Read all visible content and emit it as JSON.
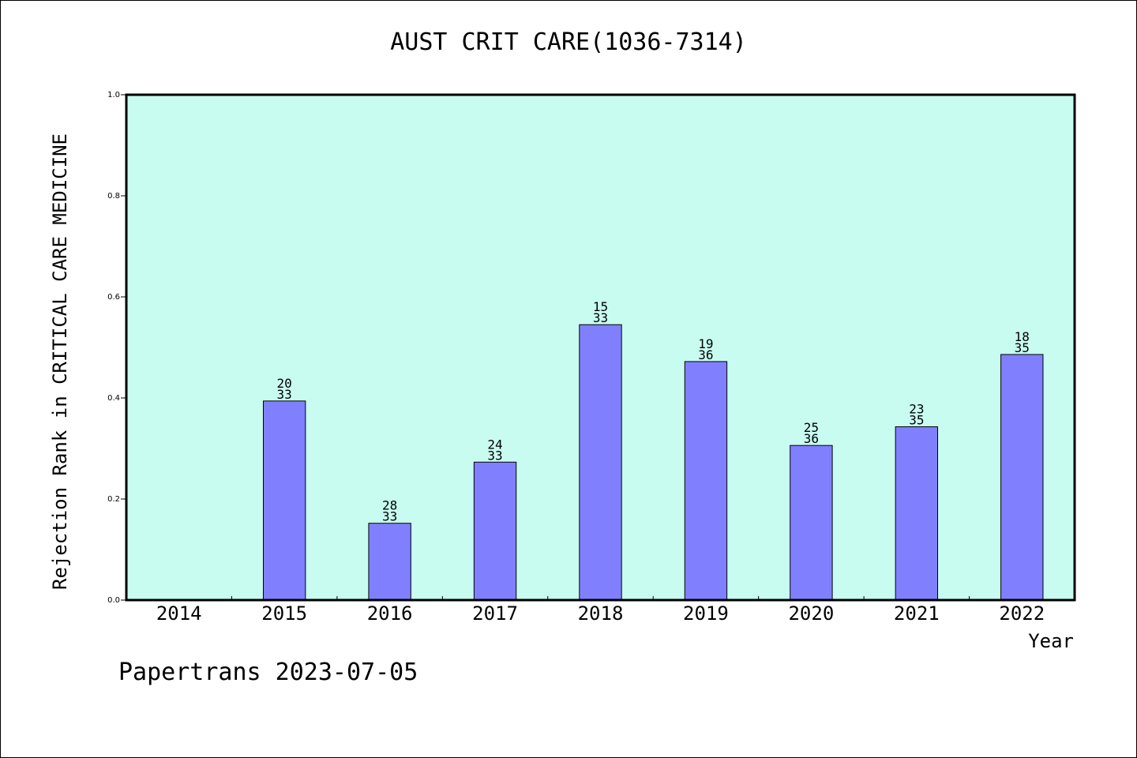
{
  "chart_data": {
    "type": "bar",
    "title": "AUST CRIT CARE(1036-7314)",
    "xlabel": "Year",
    "ylabel": "Rejection Rank in CRITICAL CARE MEDICINE",
    "ylim": [
      0,
      1.0
    ],
    "yticks": [
      "0.0",
      "0.2",
      "0.4",
      "0.6",
      "0.8",
      "1.0"
    ],
    "categories": [
      "2014",
      "2015",
      "2016",
      "2017",
      "2018",
      "2019",
      "2020",
      "2021",
      "2022"
    ],
    "values": [
      null,
      0.394,
      0.152,
      0.273,
      0.545,
      0.472,
      0.306,
      0.343,
      0.486
    ],
    "labels": [
      null,
      {
        "rank": "20",
        "total": "33"
      },
      {
        "rank": "28",
        "total": "33"
      },
      {
        "rank": "24",
        "total": "33"
      },
      {
        "rank": "15",
        "total": "33"
      },
      {
        "rank": "19",
        "total": "36"
      },
      {
        "rank": "25",
        "total": "36"
      },
      {
        "rank": "23",
        "total": "35"
      },
      {
        "rank": "18",
        "total": "35"
      }
    ],
    "colors": {
      "plot_background": "#c8fcf0",
      "bar": "#8080ff",
      "bar_edge": "#000000"
    },
    "grid": false,
    "legend": "none"
  },
  "footer": {
    "text": "Papertrans 2023-07-05"
  }
}
